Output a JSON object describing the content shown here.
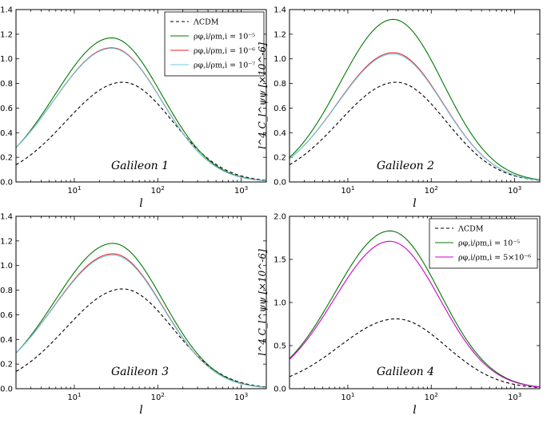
{
  "chart_data": [
    {
      "type": "line",
      "panel": "Galileon 1",
      "annotation": "Galileon 1",
      "xscale": "log",
      "xlim": [
        2,
        2000
      ],
      "ylim": [
        0,
        1.4
      ],
      "yticks": [
        "0.0",
        "0.2",
        "0.4",
        "0.6",
        "0.8",
        "1.0",
        "1.2",
        "1.4"
      ],
      "xticks": [
        "10^1",
        "10^2",
        "10^3"
      ],
      "xlabel": "l",
      "ylabel": "l^4 C_l^ψψ [×10^-6]",
      "legend_position": "top-right",
      "series": [
        {
          "name": "ΛCDM",
          "color": "#000000",
          "style": "dashed",
          "peak_l": 38,
          "peak": 0.81,
          "y_at_2": 0.14
        },
        {
          "name": "ρφ,i/ρm,i = 10^-5",
          "color": "#007a00",
          "style": "solid",
          "peak_l": 28,
          "peak": 1.17,
          "y_at_2": 0.28
        },
        {
          "name": "ρφ,i/ρm,i = 10^-6",
          "color": "#e8262b",
          "style": "solid",
          "peak_l": 28,
          "peak": 1.09,
          "y_at_2": 0.28
        },
        {
          "name": "ρφ,i/ρm,i = 10^-7",
          "color": "#6ccbe0",
          "style": "solid",
          "peak_l": 28,
          "peak": 1.085,
          "y_at_2": 0.28
        }
      ],
      "legend": [
        {
          "label": "ΛCDM",
          "color": "#000000",
          "style": "dashed"
        },
        {
          "label": "ρφ,i/ρm,i = 10⁻⁵",
          "color": "#007a00",
          "style": "solid"
        },
        {
          "label": "ρφ,i/ρm,i = 10⁻⁶",
          "color": "#e8262b",
          "style": "solid"
        },
        {
          "label": "ρφ,i/ρm,i = 10⁻⁷",
          "color": "#6ccbe0",
          "style": "solid"
        }
      ]
    },
    {
      "type": "line",
      "panel": "Galileon 2",
      "annotation": "Galileon 2",
      "xscale": "log",
      "xlim": [
        2,
        2000
      ],
      "ylim": [
        0,
        1.4
      ],
      "yticks": [
        "0.0",
        "0.2",
        "0.4",
        "0.6",
        "0.8",
        "1.0",
        "1.2",
        "1.4"
      ],
      "xticks": [
        "10^1",
        "10^2",
        "10^3"
      ],
      "xlabel": "l",
      "ylabel": "l^4 C_l^ψψ [×10^-6]",
      "series": [
        {
          "name": "ΛCDM",
          "color": "#000000",
          "style": "dashed",
          "peak_l": 38,
          "peak": 0.81,
          "y_at_2": 0.14
        },
        {
          "name": "ρφ,i/ρm,i = 10^-5",
          "color": "#007a00",
          "style": "solid",
          "peak_l": 35,
          "peak": 1.32,
          "y_at_2": 0.2
        },
        {
          "name": "ρφ,i/ρm,i = 10^-6",
          "color": "#e8262b",
          "style": "solid",
          "peak_l": 35,
          "peak": 1.05,
          "y_at_2": 0.19
        },
        {
          "name": "ρφ,i/ρm,i = 10^-7",
          "color": "#6ccbe0",
          "style": "solid",
          "peak_l": 35,
          "peak": 1.04,
          "y_at_2": 0.19
        }
      ],
      "legend": []
    },
    {
      "type": "line",
      "panel": "Galileon 3",
      "annotation": "Galileon 3",
      "xscale": "log",
      "xlim": [
        2,
        2000
      ],
      "ylim": [
        0,
        1.4
      ],
      "yticks": [
        "0.0",
        "0.2",
        "0.4",
        "0.6",
        "0.8",
        "1.0",
        "1.2",
        "1.4"
      ],
      "xticks": [
        "10^1",
        "10^2",
        "10^3"
      ],
      "xlabel": "l",
      "ylabel": "l^4 C_l^ψψ [×10^-6]",
      "series": [
        {
          "name": "ΛCDM",
          "color": "#000000",
          "style": "dashed",
          "peak_l": 38,
          "peak": 0.81,
          "y_at_2": 0.14
        },
        {
          "name": "ρφ,i/ρm,i = 10^-5",
          "color": "#007a00",
          "style": "solid",
          "peak_l": 29,
          "peak": 1.18,
          "y_at_2": 0.29
        },
        {
          "name": "ρφ,i/ρm,i = 10^-6",
          "color": "#e8262b",
          "style": "solid",
          "peak_l": 29,
          "peak": 1.095,
          "y_at_2": 0.29
        },
        {
          "name": "ρφ,i/ρm,i = 10^-7",
          "color": "#6ccbe0",
          "style": "solid",
          "peak_l": 29,
          "peak": 1.085,
          "y_at_2": 0.29
        }
      ],
      "legend": []
    },
    {
      "type": "line",
      "panel": "Galileon 4",
      "annotation": "Galileon 4",
      "xscale": "log",
      "xlim": [
        2,
        2000
      ],
      "ylim": [
        0,
        2.0
      ],
      "yticks": [
        "0.0",
        "0.5",
        "1.0",
        "1.5",
        "2.0"
      ],
      "xticks": [
        "10^1",
        "10^2",
        "10^3"
      ],
      "xlabel": "l",
      "ylabel": "l^4 C_l^ψψ [×10^-6]",
      "legend_position": "top-right",
      "series": [
        {
          "name": "ΛCDM",
          "color": "#000000",
          "style": "dashed",
          "peak_l": 38,
          "peak": 0.81,
          "y_at_2": 0.14
        },
        {
          "name": "ρφ,i/ρm,i = 10^-5",
          "color": "#007a00",
          "style": "solid",
          "peak_l": 32,
          "peak": 1.83,
          "y_at_2": 0.35
        },
        {
          "name": "ρφ,i/ρm,i = 5×10^-6",
          "color": "#cc00cc",
          "style": "solid",
          "peak_l": 32,
          "peak": 1.71,
          "y_at_2": 0.34
        }
      ],
      "legend": [
        {
          "label": "ΛCDM",
          "color": "#000000",
          "style": "dashed"
        },
        {
          "label": "ρφ,i/ρm,i = 10⁻⁵",
          "color": "#007a00",
          "style": "solid"
        },
        {
          "label": "ρφ,i/ρm,i = 5×10⁻⁶",
          "color": "#cc00cc",
          "style": "solid"
        }
      ]
    }
  ]
}
